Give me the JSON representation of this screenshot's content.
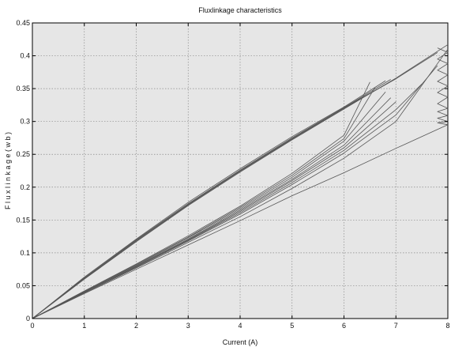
{
  "chart_data": {
    "type": "line",
    "title": "Fluxlinkage characteristics",
    "xlabel": "Current (A)",
    "ylabel": "F l u x l i n k a g e  ( w b )",
    "xlim": [
      0,
      8
    ],
    "ylim": [
      0,
      0.45
    ],
    "xticks": [
      0,
      1,
      2,
      3,
      4,
      5,
      6,
      7,
      8
    ],
    "yticks": [
      0,
      0.05,
      0.1,
      0.15,
      0.2,
      0.25,
      0.3,
      0.35,
      0.4,
      0.45
    ],
    "xtick_labels": [
      "0",
      "1",
      "2",
      "3",
      "4",
      "5",
      "6",
      "7",
      "8"
    ],
    "ytick_labels": [
      "0",
      "0.05",
      "0.1",
      "0.15",
      "0.2",
      "0.25",
      "0.3",
      "0.35",
      "0.4",
      "0.45"
    ],
    "grid": true,
    "colors": {
      "plot_bg": "#e6e6e6",
      "line": "#555555",
      "grid": "#8a8a8a"
    },
    "series": [
      {
        "x": [
          0,
          1,
          2,
          3,
          4,
          5,
          6,
          6.8
        ],
        "y": [
          0,
          0.063,
          0.121,
          0.177,
          0.228,
          0.277,
          0.322,
          0.362
        ]
      },
      {
        "x": [
          0,
          1,
          2,
          3,
          4,
          5,
          6,
          6.9
        ],
        "y": [
          0,
          0.062,
          0.12,
          0.175,
          0.226,
          0.275,
          0.321,
          0.364
        ]
      },
      {
        "x": [
          0,
          1,
          2,
          3,
          4,
          5,
          6,
          7
        ],
        "y": [
          0,
          0.061,
          0.119,
          0.174,
          0.225,
          0.274,
          0.321,
          0.365
        ]
      },
      {
        "x": [
          0,
          1,
          2,
          3,
          4,
          5,
          6,
          7,
          7.8
        ],
        "y": [
          0,
          0.06,
          0.118,
          0.173,
          0.224,
          0.273,
          0.32,
          0.365,
          0.405
        ]
      },
      {
        "x": [
          0,
          1,
          2,
          3,
          4,
          5,
          6,
          7,
          8
        ],
        "y": [
          0,
          0.06,
          0.117,
          0.172,
          0.223,
          0.272,
          0.319,
          0.366,
          0.417
        ]
      },
      {
        "x": [
          0,
          1,
          2,
          3,
          4,
          5,
          6,
          6.5
        ],
        "y": [
          0,
          0.042,
          0.083,
          0.126,
          0.171,
          0.221,
          0.279,
          0.36
        ]
      },
      {
        "x": [
          0,
          1,
          2,
          3,
          4,
          5,
          6,
          6.6
        ],
        "y": [
          0,
          0.041,
          0.082,
          0.124,
          0.169,
          0.218,
          0.274,
          0.352
        ]
      },
      {
        "x": [
          0,
          1,
          2,
          3,
          4,
          5,
          6,
          6.8
        ],
        "y": [
          0,
          0.041,
          0.081,
          0.123,
          0.167,
          0.215,
          0.27,
          0.345
        ]
      },
      {
        "x": [
          0,
          1,
          2,
          3,
          4,
          5,
          6,
          6.9
        ],
        "y": [
          0,
          0.04,
          0.08,
          0.121,
          0.165,
          0.212,
          0.264,
          0.336
        ]
      },
      {
        "x": [
          0,
          1,
          2,
          3,
          4,
          5,
          6,
          7
        ],
        "y": [
          0,
          0.04,
          0.079,
          0.12,
          0.163,
          0.21,
          0.26,
          0.33
        ]
      },
      {
        "x": [
          0,
          1,
          2,
          3,
          4,
          5,
          6,
          7,
          7.5
        ],
        "y": [
          0,
          0.04,
          0.079,
          0.119,
          0.161,
          0.207,
          0.256,
          0.318,
          0.357
        ]
      },
      {
        "x": [
          0,
          1,
          2,
          3,
          4,
          5,
          6,
          7,
          7.8
        ],
        "y": [
          0,
          0.04,
          0.078,
          0.118,
          0.159,
          0.204,
          0.252,
          0.31,
          0.385
        ]
      },
      {
        "x": [
          0,
          1,
          2,
          3,
          4,
          5,
          6,
          7,
          8
        ],
        "y": [
          0,
          0.039,
          0.077,
          0.116,
          0.155,
          0.198,
          0.244,
          0.3,
          0.41
        ]
      },
      {
        "x": [
          0,
          1,
          2,
          3,
          4,
          5,
          6,
          7,
          8
        ],
        "y": [
          0,
          0.038,
          0.075,
          0.112,
          0.149,
          0.187,
          0.222,
          0.259,
          0.295
        ]
      },
      {
        "x": [
          7.8,
          8,
          7.8,
          8,
          7.8,
          8,
          7.8,
          8,
          7.8,
          8,
          7.8,
          8,
          7.8,
          8,
          7.8,
          8,
          7.8,
          8
        ],
        "y": [
          0.412,
          0.405,
          0.395,
          0.388,
          0.378,
          0.371,
          0.361,
          0.354,
          0.344,
          0.337,
          0.327,
          0.32,
          0.315,
          0.309,
          0.305,
          0.3,
          0.298,
          0.295
        ]
      }
    ]
  }
}
